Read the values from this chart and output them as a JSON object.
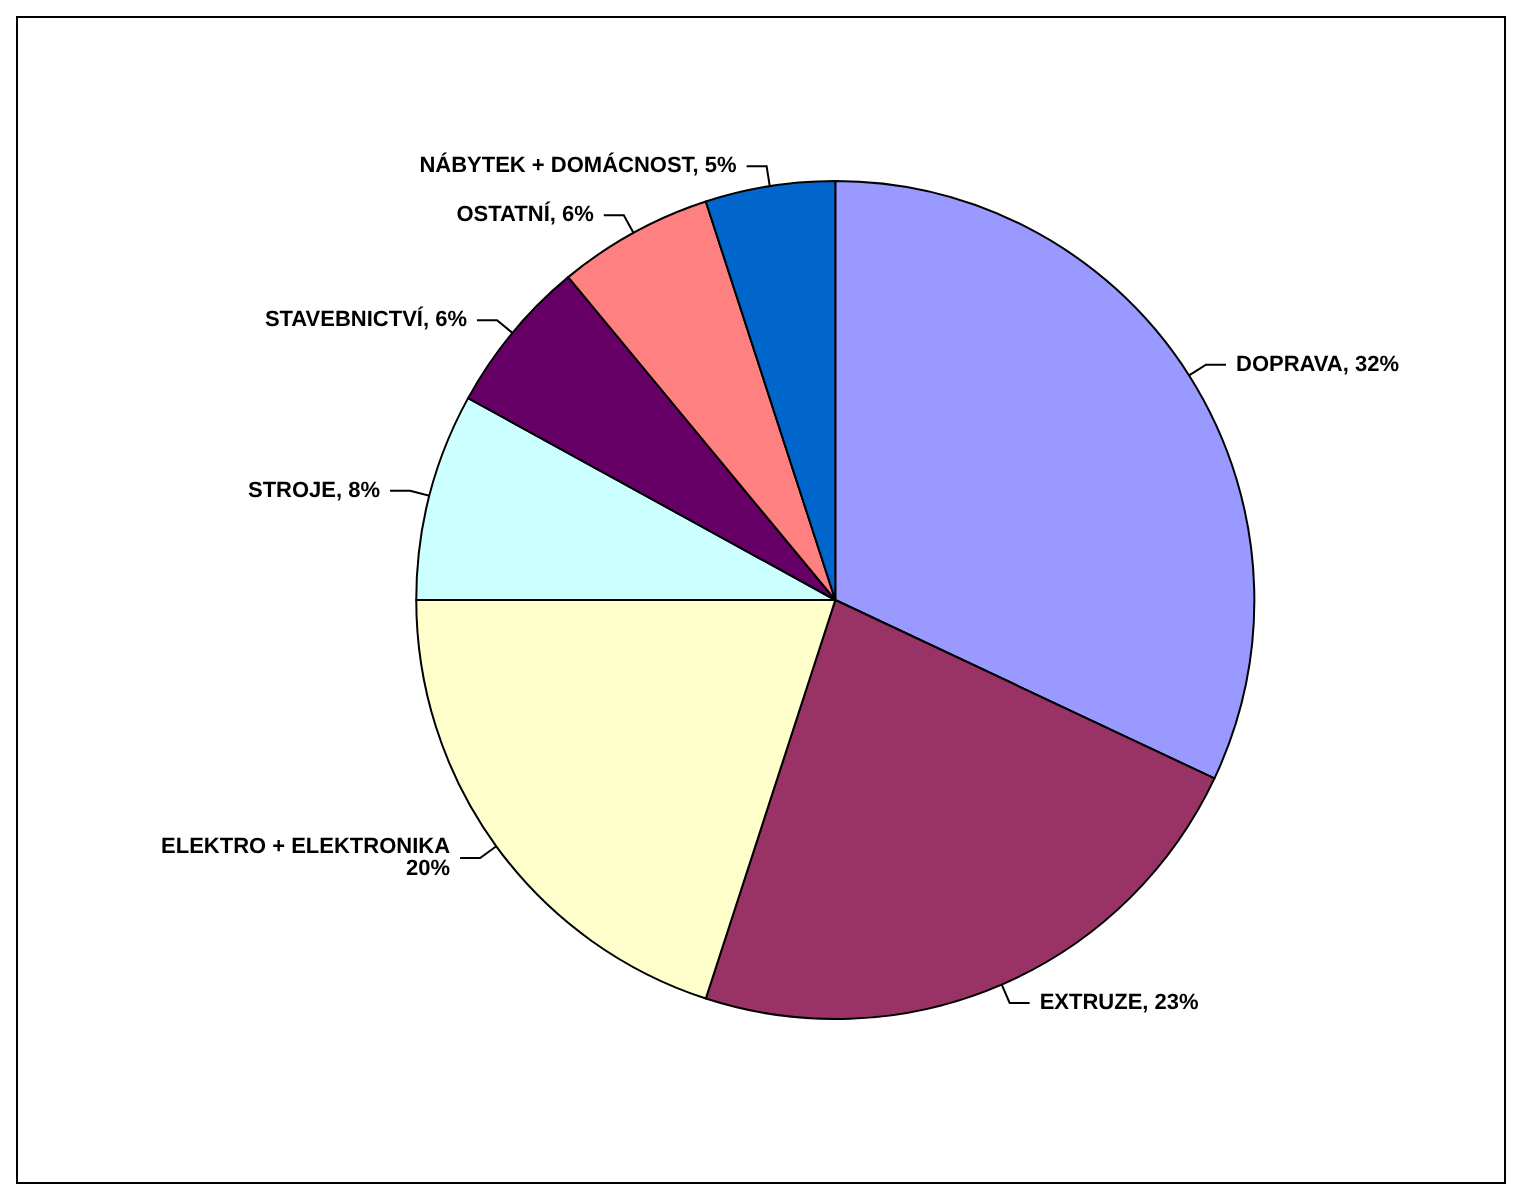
{
  "chart_data": {
    "type": "pie",
    "categories": [
      "DOPRAVA",
      "EXTRUZE",
      "ELEKTRO + ELEKTRONIKA",
      "STROJE",
      "STAVEBNICTVÍ",
      "OSTATNÍ",
      "NÁBYTEK + DOMÁCNOST"
    ],
    "values": [
      32,
      23,
      20,
      8,
      6,
      6,
      5
    ],
    "value_labels": [
      "32%",
      "23%",
      "20%",
      "8%",
      "6%",
      "6%",
      "5%"
    ],
    "colors": [
      "#9999ff",
      "#993366",
      "#ffffcc",
      "#ccffff",
      "#660066",
      "#ff8080",
      "#0066cc"
    ],
    "legend": false
  }
}
